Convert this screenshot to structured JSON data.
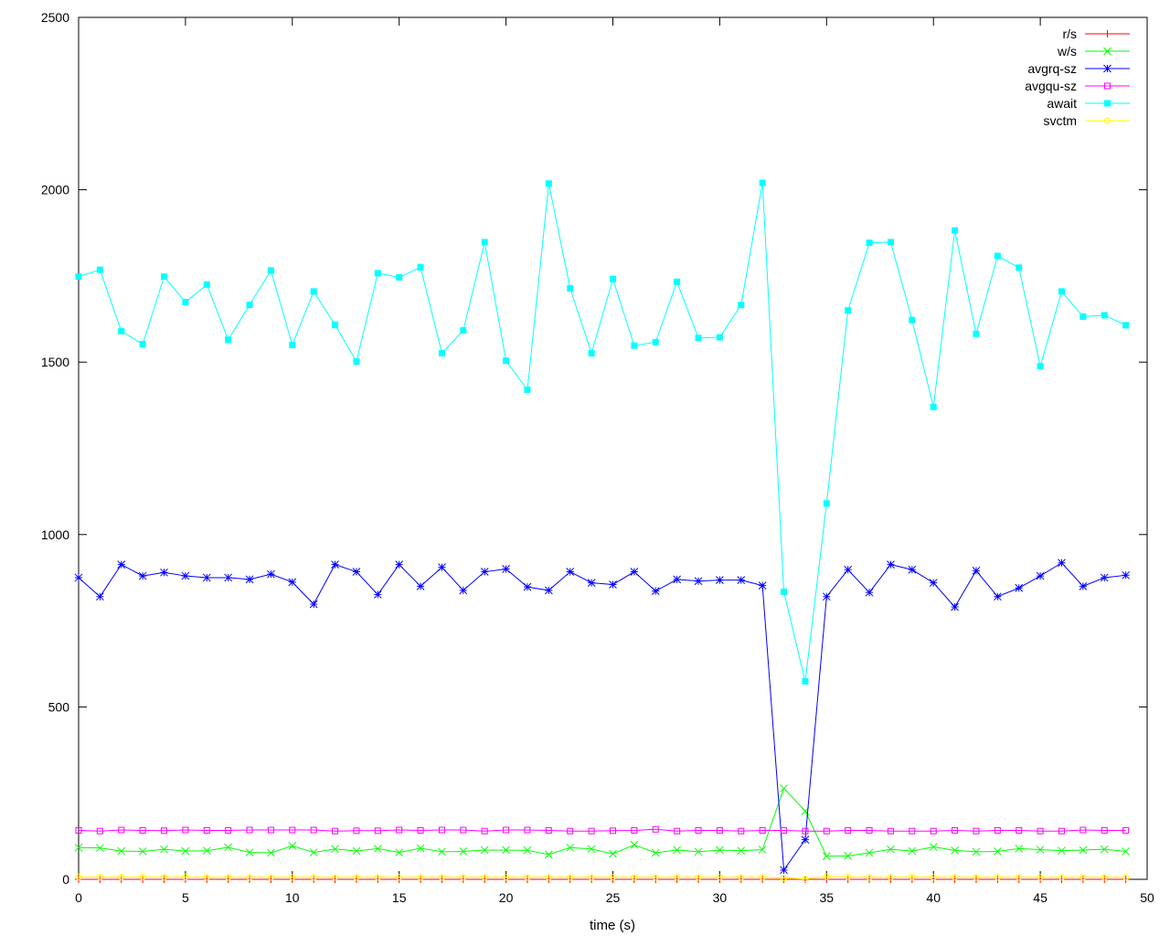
{
  "chart_data": {
    "type": "line",
    "title": "",
    "xlabel": "time (s)",
    "ylabel": "",
    "xlim": [
      0,
      50
    ],
    "ylim": [
      0,
      2500
    ],
    "x_ticks": [
      0,
      5,
      10,
      15,
      20,
      25,
      30,
      35,
      40,
      45,
      50
    ],
    "y_ticks": [
      0,
      500,
      1000,
      1500,
      2000,
      2500
    ],
    "grid": false,
    "legend_position": "top-right",
    "x": [
      0,
      1,
      2,
      3,
      4,
      5,
      6,
      7,
      8,
      9,
      10,
      11,
      12,
      13,
      14,
      15,
      16,
      17,
      18,
      19,
      20,
      21,
      22,
      23,
      24,
      25,
      26,
      27,
      28,
      29,
      30,
      31,
      32,
      33,
      34,
      35,
      36,
      37,
      38,
      39,
      40,
      41,
      42,
      43,
      44,
      45,
      46,
      47,
      48,
      49
    ],
    "series": [
      {
        "name": "r/s",
        "color": "#ff0000",
        "marker": "plus",
        "values": [
          0,
          0,
          0,
          0,
          0,
          0,
          0,
          0,
          0,
          0,
          0,
          0,
          0,
          0,
          0,
          0,
          0,
          0,
          0,
          0,
          0,
          0,
          0,
          0,
          0,
          0,
          0,
          0,
          0,
          0,
          0,
          0,
          0,
          0,
          0,
          0,
          0,
          0,
          0,
          0,
          0,
          0,
          0,
          0,
          0,
          0,
          0,
          0,
          0,
          0
        ]
      },
      {
        "name": "w/s",
        "color": "#00ff00",
        "marker": "cross",
        "values": [
          92,
          91,
          82,
          81,
          87,
          82,
          83,
          93,
          78,
          77,
          97,
          78,
          88,
          82,
          89,
          78,
          90,
          80,
          81,
          85,
          85,
          84,
          72,
          92,
          88,
          74,
          100,
          77,
          85,
          80,
          85,
          83,
          86,
          264,
          198,
          67,
          68,
          77,
          87,
          82,
          94,
          84,
          80,
          81,
          89,
          86,
          83,
          85,
          87,
          81
        ]
      },
      {
        "name": "avgrq-sz",
        "color": "#0000ff",
        "marker": "star",
        "values": [
          875,
          820,
          913,
          880,
          890,
          880,
          875,
          875,
          870,
          885,
          862,
          798,
          913,
          892,
          826,
          913,
          850,
          905,
          838,
          892,
          900,
          848,
          838,
          892,
          860,
          855,
          892,
          836,
          870,
          865,
          868,
          868,
          852,
          27,
          115,
          820,
          898,
          832,
          913,
          898,
          860,
          790,
          895,
          820,
          845,
          880,
          918,
          850,
          875,
          882
        ]
      },
      {
        "name": "avgqu-sz",
        "color": "#ff00ff",
        "marker": "open-square",
        "values": [
          142,
          140,
          143,
          142,
          141,
          143,
          142,
          142,
          143,
          143,
          143,
          143,
          140,
          141,
          141,
          143,
          142,
          143,
          143,
          140,
          143,
          143,
          142,
          140,
          140,
          141,
          142,
          145,
          140,
          142,
          142,
          140,
          142,
          142,
          140,
          140,
          142,
          142,
          140,
          140,
          140,
          142,
          140,
          142,
          142,
          140,
          140,
          143,
          142,
          142
        ]
      },
      {
        "name": "await",
        "color": "#00ffff",
        "marker": "filled-square",
        "values": [
          1748,
          1768,
          1590,
          1552,
          1748,
          1674,
          1725,
          1565,
          1666,
          1766,
          1550,
          1705,
          1608,
          1502,
          1758,
          1746,
          1775,
          1526,
          1592,
          1848,
          1504,
          1420,
          2018,
          1714,
          1526,
          1741,
          1548,
          1558,
          1733,
          1570,
          1572,
          1666,
          2020,
          834,
          574,
          1090,
          1650,
          1846,
          1848,
          1622,
          1370,
          1882,
          1582,
          1808,
          1774,
          1488,
          1705,
          1632,
          1636,
          1607
        ]
      },
      {
        "name": "svctm",
        "color": "#ffff00",
        "marker": "circle",
        "values": [
          7,
          7,
          7,
          7,
          6,
          7,
          6,
          6,
          6,
          6,
          6,
          6,
          6,
          6,
          6,
          6,
          6,
          6,
          6,
          6,
          6,
          6,
          6,
          6,
          6,
          6,
          6,
          6,
          6,
          6,
          6,
          6,
          6,
          4,
          1,
          8,
          7,
          6,
          6,
          7,
          6,
          6,
          6,
          6,
          6,
          6,
          6,
          6,
          6,
          6
        ]
      }
    ]
  }
}
